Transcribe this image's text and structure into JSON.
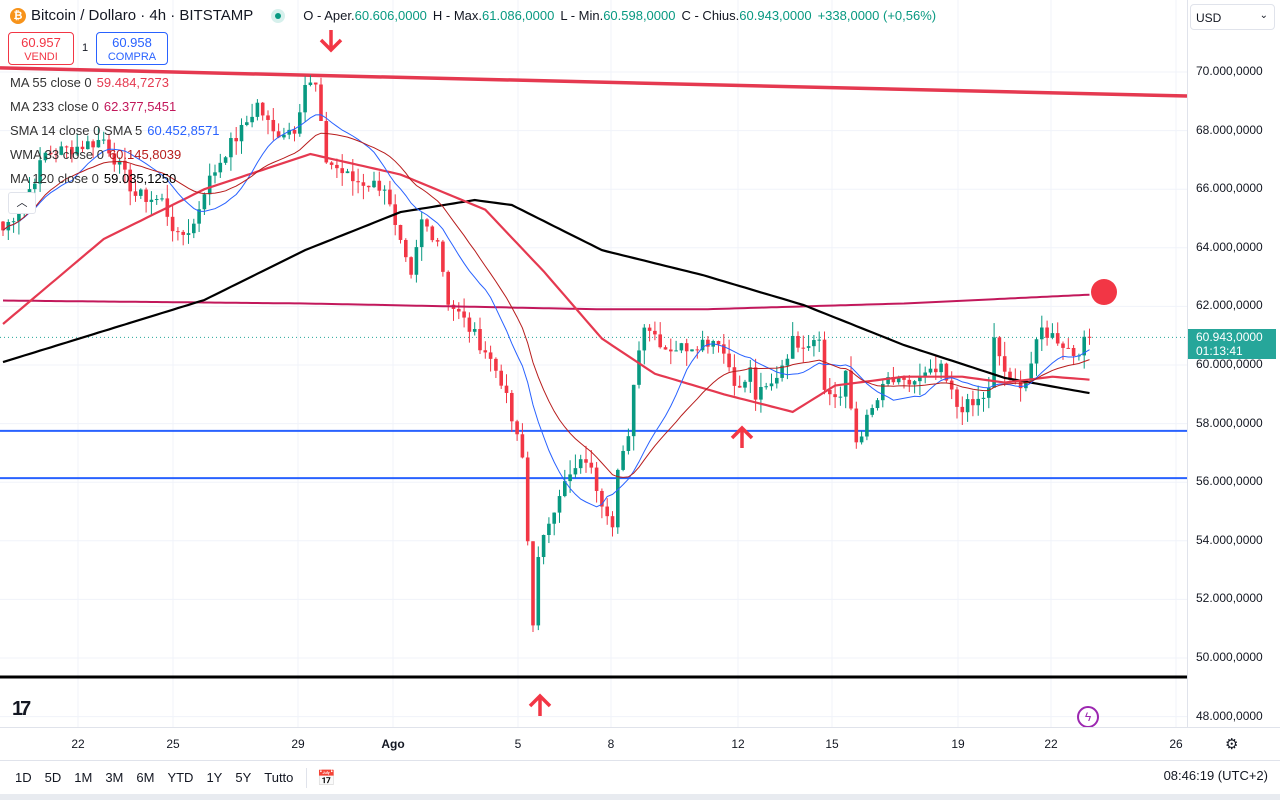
{
  "header": {
    "symbol": "Bitcoin / Dollaro · 4h · BITSTAMP",
    "coin_glyph": "₿",
    "o_label": "O - Aper.",
    "o": "60.606,0000",
    "h_label": "H - Max.",
    "h": "61.086,0000",
    "l_label": "L - Min.",
    "l": "60.598,0000",
    "c_label": "C - Chius.",
    "c": "60.943,0000",
    "change": "+338,0000 (+0,56%)"
  },
  "trade": {
    "sell_price": "60.957",
    "sell_label": "VENDI",
    "qty": "1",
    "buy_price": "60.958",
    "buy_label": "COMPRA"
  },
  "legend": [
    {
      "name": "MA 55 close 0",
      "value": "59.484,7273",
      "color": "#e53950"
    },
    {
      "name": "MA 233 close 0",
      "value": "62.377,5451",
      "color": "#c2185b"
    },
    {
      "name": "SMA 14 close 0 SMA 5",
      "value": "60.452,8571",
      "color": "#2962ff"
    },
    {
      "name": "WMA 33 close 0",
      "value": "60.145,8039",
      "color": "#b71c1c"
    },
    {
      "name": "MA 120 close 0",
      "value": "59.035,1250",
      "color": "#000000"
    }
  ],
  "currency": "USD",
  "current": {
    "price": "60.943,0000",
    "countdown": "01:13:41"
  },
  "y_ticks": [
    "70.000,0000",
    "68.000,0000",
    "66.000,0000",
    "64.000,0000",
    "62.000,0000",
    "60.000,0000",
    "58.000,0000",
    "56.000,0000",
    "54.000,0000",
    "52.000,0000",
    "50.000,0000",
    "48.000,0000"
  ],
  "x_ticks": [
    "22",
    "25",
    "29",
    "Ago",
    "5",
    "8",
    "12",
    "15",
    "19",
    "22",
    "26"
  ],
  "ranges": [
    "1D",
    "5D",
    "1M",
    "3M",
    "6M",
    "YTD",
    "1Y",
    "5Y",
    "Tutto"
  ],
  "clock": "08:46:19 (UTC+2)",
  "logo_text": "TV",
  "chart_data": {
    "type": "candlestick",
    "title": "Bitcoin / Dollaro · 4h · BITSTAMP",
    "unit": "thousand USD",
    "ylim": [
      47.5,
      71.5
    ],
    "colors": {
      "up": "#089981",
      "down": "#f23645"
    },
    "key_path": [
      [
        0,
        64.6
      ],
      [
        4,
        65.6
      ],
      [
        8,
        67.2
      ],
      [
        13,
        67.4
      ],
      [
        19,
        67.7
      ],
      [
        25,
        65.8
      ],
      [
        30,
        65.6
      ],
      [
        33,
        64.3
      ],
      [
        36,
        64.8
      ],
      [
        38,
        66.0
      ],
      [
        42,
        67.3
      ],
      [
        45,
        68.0
      ],
      [
        48,
        68.9
      ],
      [
        51,
        67.9
      ],
      [
        55,
        68.1
      ],
      [
        57,
        69.6
      ],
      [
        59,
        69.5
      ],
      [
        60,
        68.1
      ],
      [
        61,
        67.0
      ],
      [
        66,
        66.3
      ],
      [
        72,
        66.1
      ],
      [
        74,
        64.6
      ],
      [
        77,
        62.9
      ],
      [
        79,
        64.9
      ],
      [
        82,
        64.3
      ],
      [
        84,
        62.2
      ],
      [
        87,
        61.5
      ],
      [
        91,
        60.5
      ],
      [
        94,
        59.5
      ],
      [
        96,
        58.1
      ],
      [
        98,
        56.8
      ],
      [
        99,
        54.0
      ],
      [
        100,
        51.3
      ],
      [
        101,
        53.3
      ],
      [
        103,
        54.7
      ],
      [
        105,
        55.7
      ],
      [
        108,
        56.4
      ],
      [
        110,
        56.8
      ],
      [
        113,
        55.4
      ],
      [
        115,
        54.7
      ],
      [
        116,
        56.4
      ],
      [
        118,
        57.4
      ],
      [
        119,
        59.5
      ],
      [
        121,
        61.5
      ],
      [
        125,
        60.6
      ],
      [
        128,
        60.6
      ],
      [
        132,
        60.8
      ],
      [
        135,
        60.9
      ],
      [
        136,
        60.4
      ],
      [
        139,
        59.1
      ],
      [
        141,
        59.8
      ],
      [
        142,
        58.9
      ],
      [
        145,
        59.3
      ],
      [
        149,
        60.8
      ],
      [
        152,
        60.8
      ],
      [
        154,
        61.1
      ],
      [
        155,
        59.1
      ],
      [
        158,
        58.9
      ],
      [
        159,
        59.6
      ],
      [
        161,
        57.4
      ],
      [
        163,
        58.1
      ],
      [
        167,
        59.5
      ],
      [
        170,
        59.3
      ],
      [
        174,
        59.6
      ],
      [
        177,
        59.8
      ],
      [
        180,
        58.6
      ],
      [
        183,
        58.6
      ],
      [
        186,
        59.1
      ],
      [
        187,
        60.8
      ],
      [
        190,
        59.3
      ],
      [
        193,
        59.5
      ],
      [
        196,
        61.2
      ],
      [
        199,
        60.9
      ],
      [
        202,
        60.4
      ],
      [
        205,
        60.9
      ]
    ],
    "ma120": [
      [
        0,
        60.1
      ],
      [
        38,
        62.22
      ],
      [
        57,
        63.92
      ],
      [
        75,
        65.22
      ],
      [
        89,
        65.63
      ],
      [
        96,
        65.46
      ],
      [
        113,
        63.92
      ],
      [
        132,
        63.07
      ],
      [
        151,
        62.05
      ],
      [
        170,
        60.68
      ],
      [
        189,
        59.56
      ],
      [
        205,
        59.04
      ]
    ],
    "ma233": [
      [
        0,
        62.2
      ],
      [
        57,
        62.1
      ],
      [
        113,
        61.9
      ],
      [
        132,
        61.9
      ],
      [
        170,
        62.1
      ],
      [
        205,
        62.4
      ]
    ],
    "ma55": [
      [
        0,
        61.4
      ],
      [
        19,
        64.3
      ],
      [
        38,
        66.0
      ],
      [
        58,
        67.2
      ],
      [
        75,
        66.5
      ],
      [
        91,
        65.3
      ],
      [
        102,
        63.2
      ],
      [
        113,
        60.9
      ],
      [
        123,
        59.7
      ],
      [
        136,
        59.0
      ],
      [
        149,
        58.4
      ],
      [
        157,
        59.3
      ],
      [
        170,
        59.6
      ],
      [
        181,
        59.6
      ],
      [
        189,
        59.4
      ],
      [
        198,
        59.6
      ],
      [
        205,
        59.5
      ]
    ],
    "hlines": [
      {
        "name": "support-blue-1",
        "price": 57.75,
        "color": "#2962ff"
      },
      {
        "name": "support-blue-2",
        "price": 56.14,
        "color": "#2962ff"
      },
      {
        "name": "support-black",
        "price": 49.35,
        "color": "#000000"
      }
    ],
    "trendline": {
      "from": 70.14,
      "to": 69.18,
      "color": "#e53950"
    },
    "last_price": 60.943
  }
}
